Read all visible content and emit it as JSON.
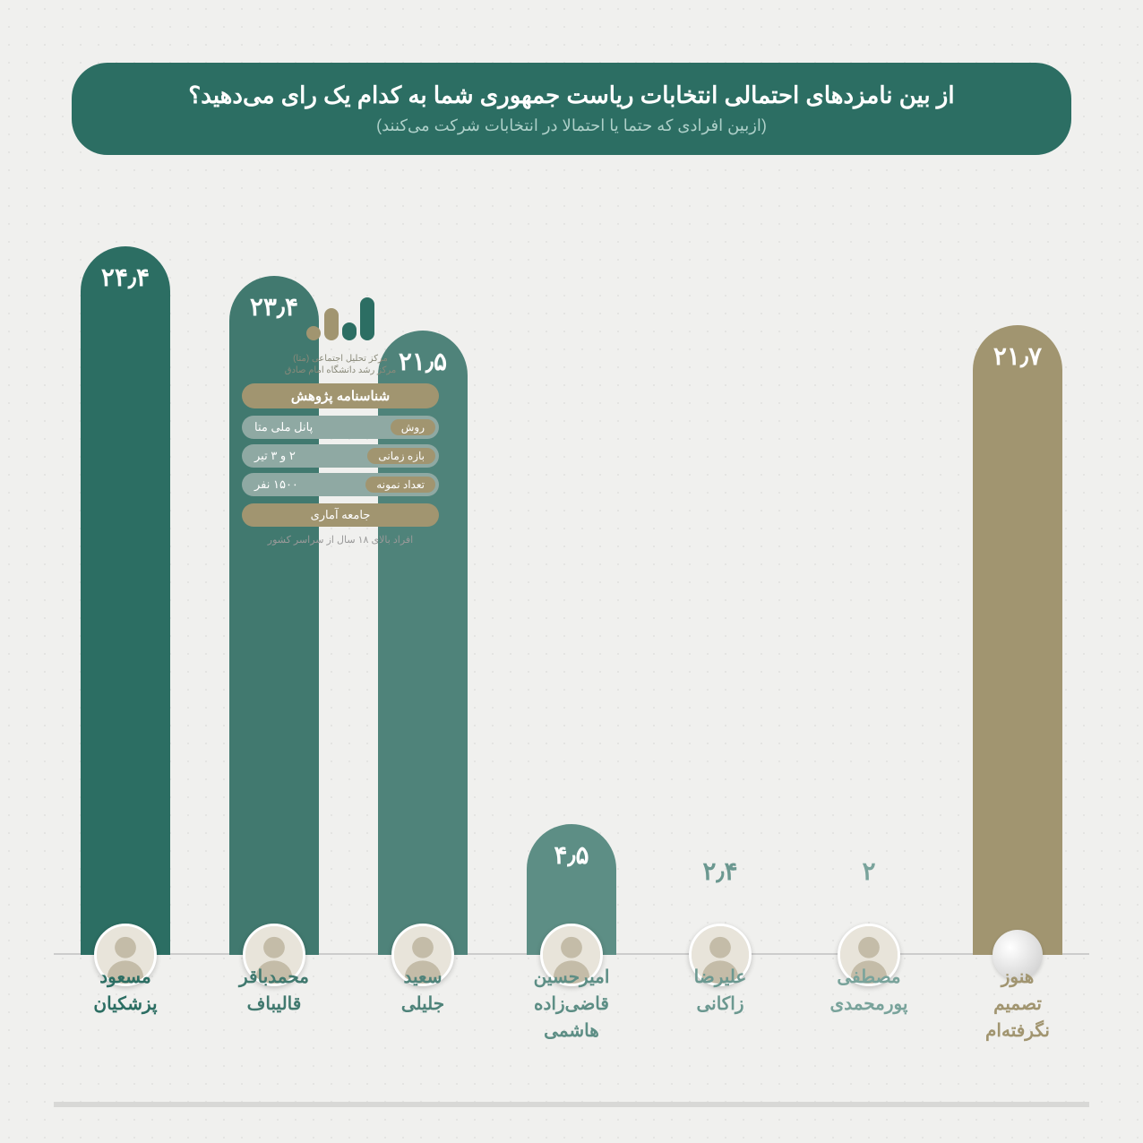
{
  "header": {
    "title": "از بین نامزدهای احتمالی انتخابات ریاست جمهوری شما به کدام یک رای می‌دهید؟",
    "subtitle": "(ازبین افرادی که حتما یا احتمالا در انتخابات شرکت می‌کنند)"
  },
  "chart": {
    "type": "bar",
    "max": 25,
    "background_color": "#f0f0ee",
    "bars": [
      {
        "label_l1": "مسعود",
        "label_l2": "پزشکیان",
        "value_text": "۲۴٫۴",
        "value": 24.4,
        "color": "#2c6e63",
        "text_color": "#2c6e63",
        "has_avatar": true
      },
      {
        "label_l1": "محمدباقر",
        "label_l2": "قالیباف",
        "value_text": "۲۳٫۴",
        "value": 23.4,
        "color": "#41796f",
        "text_color": "#41796f",
        "has_avatar": true
      },
      {
        "label_l1": "سعید",
        "label_l2": "جلیلی",
        "value_text": "۲۱٫۵",
        "value": 21.5,
        "color": "#4f837a",
        "text_color": "#4f837a",
        "has_avatar": true
      },
      {
        "label_l1": "امیرحسین",
        "label_l2": "قاضی‌زاده",
        "label_l3": "هاشمی",
        "value_text": "۴٫۵",
        "value": 4.5,
        "color": "#5d8e85",
        "text_color": "#5d8e85",
        "has_avatar": true
      },
      {
        "label_l1": "علیرضا",
        "label_l2": "زاکانی",
        "value_text": "۲٫۴",
        "value": 2.4,
        "color": "#6b9890",
        "text_color": "#6b9890",
        "has_avatar": true,
        "no_bar": true
      },
      {
        "label_l1": "مصطفی",
        "label_l2": "پورمحمدی",
        "value_text": "۲",
        "value": 2.0,
        "color": "#79a39b",
        "text_color": "#79a39b",
        "has_avatar": true,
        "no_bar": true
      },
      {
        "label_l1": "هنوز",
        "label_l2": "تصمیم",
        "label_l3": "نگرفته‌ام",
        "value_text": "۲۱٫۷",
        "value": 21.7,
        "color": "#a19570",
        "text_color": "#a19570",
        "has_avatar": false
      }
    ]
  },
  "info": {
    "logo_text1": "مرکز تحلیل اجتماعی (متا)",
    "logo_text2": "مرکز رشد دانشگاه امام صادق",
    "header": "شناسنامه پژوهش",
    "rows": [
      {
        "k": "روش",
        "v": "پانل ملی متا"
      },
      {
        "k": "بازه زمانی",
        "v": "۲ و ۳ تیر"
      },
      {
        "k": "تعداد نمونه",
        "v": "۱۵۰۰ نفر"
      }
    ],
    "single": "جامعه آماری",
    "note": "افراد بالای ۱۸ سال از سراسر کشور"
  }
}
